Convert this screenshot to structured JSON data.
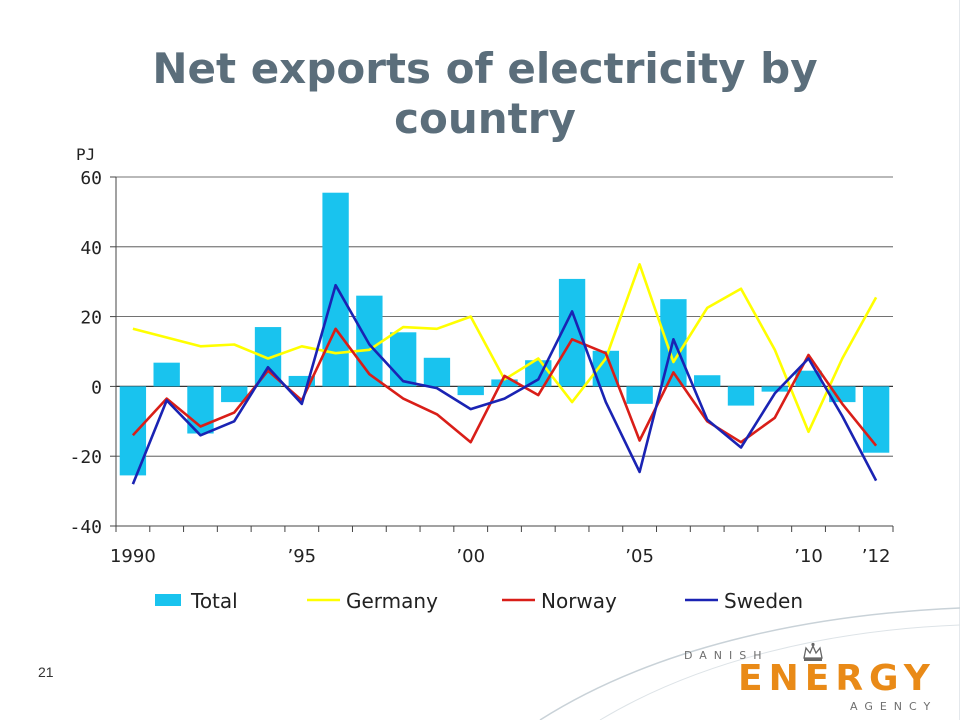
{
  "slide": {
    "title": "Net exports of electricity by country",
    "page_number": "21"
  },
  "logo": {
    "line1": "DANISH",
    "line2": "ENERGY",
    "line3": "AGENCY",
    "color": "#e98a17",
    "icon": "crown-icon"
  },
  "chart_data": {
    "type": "bar",
    "ylabel": "PJ",
    "ylim": [
      -40,
      60
    ],
    "yticks": [
      60,
      40,
      20,
      0,
      -20,
      -40
    ],
    "ytick_labels": [
      "60",
      "40",
      "20",
      "0",
      "-20",
      "-40"
    ],
    "x": [
      1990,
      1991,
      1992,
      1993,
      1994,
      1995,
      1996,
      1997,
      1998,
      1999,
      2000,
      2001,
      2002,
      2003,
      2004,
      2005,
      2006,
      2007,
      2008,
      2009,
      2010,
      2011,
      2012
    ],
    "xtick_labels": [
      {
        "x": 1990,
        "label": "1990"
      },
      {
        "x": 1995,
        "label": "’95"
      },
      {
        "x": 2000,
        "label": "’00"
      },
      {
        "x": 2005,
        "label": "’05"
      },
      {
        "x": 2010,
        "label": "’10"
      },
      {
        "x": 2012,
        "label": "’12"
      }
    ],
    "grid": true,
    "legend_position": "bottom",
    "series": [
      {
        "name": "Total",
        "kind": "bar",
        "color": "#19c3ee",
        "values": [
          -25.5,
          6.8,
          -13.5,
          -4.5,
          17,
          3,
          55.5,
          26,
          15.5,
          8.2,
          -2.5,
          2,
          7.5,
          30.8,
          10.2,
          -5,
          25,
          3.2,
          -5.5,
          -1.5,
          4.5,
          -4.5,
          -19
        ]
      },
      {
        "name": "Germany",
        "kind": "line",
        "color": "#ffff00",
        "values": [
          16.5,
          14,
          11.5,
          12,
          8,
          11.5,
          9.5,
          10.5,
          17,
          16.5,
          20,
          2,
          8,
          -4.5,
          8,
          35,
          7,
          22.5,
          28,
          10.5,
          -13,
          8,
          25.5
        ]
      },
      {
        "name": "Norway",
        "kind": "line",
        "color": "#d91e18",
        "values": [
          -14,
          -3.5,
          -11.5,
          -7.5,
          4.5,
          -4,
          16.5,
          3.5,
          -3.5,
          -8,
          -16,
          3,
          -2.5,
          13.5,
          9.5,
          -15.5,
          4,
          -10,
          -16,
          -9,
          9,
          -5,
          -17
        ]
      },
      {
        "name": "Sweden",
        "kind": "line",
        "color": "#1a23b3",
        "values": [
          -28,
          -4,
          -14,
          -10,
          5.5,
          -5,
          29,
          12,
          1.5,
          -0.5,
          -6.5,
          -3.5,
          2,
          21.5,
          -4.5,
          -24.5,
          13.5,
          -9.5,
          -17.5,
          -2,
          8,
          -8.5,
          -27
        ]
      }
    ]
  }
}
